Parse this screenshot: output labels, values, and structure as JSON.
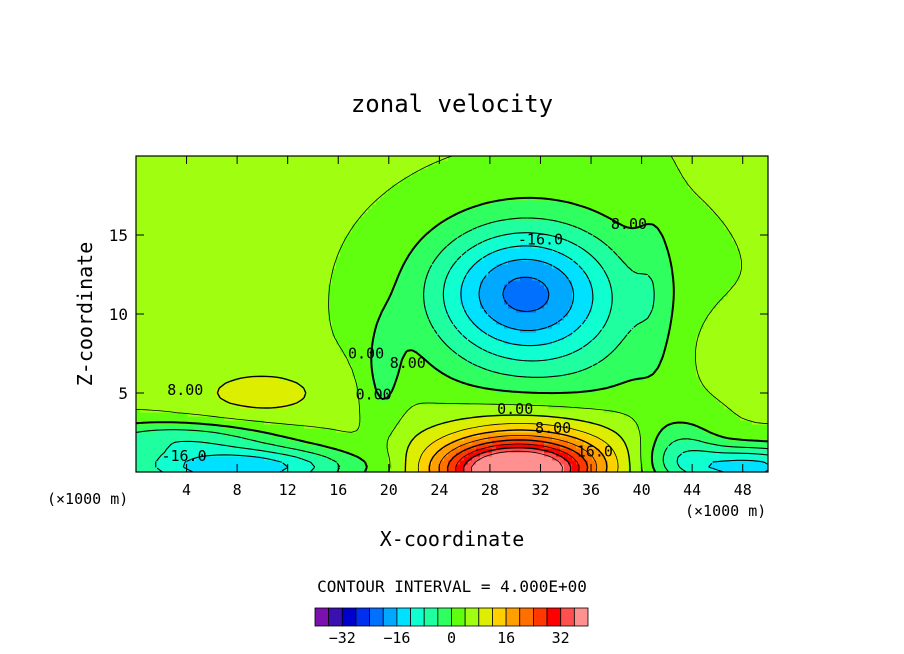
{
  "chart_data": {
    "type": "contour",
    "title": "zonal velocity",
    "xlabel": "X-coordinate",
    "ylabel": "Z-coordinate",
    "x_unit_left": "(×1000 m)",
    "x_unit_right": "(×1000 m)",
    "xlim": [
      0,
      50
    ],
    "ylim": [
      0,
      20
    ],
    "x_ticks": [
      4,
      8,
      12,
      16,
      20,
      24,
      28,
      32,
      36,
      40,
      44,
      48
    ],
    "y_ticks": [
      5,
      10,
      15
    ],
    "contour_interval_label": "CONTOUR INTERVAL = 4.000E+00",
    "colorbar": {
      "levels": [
        -40,
        -36,
        -32,
        -28,
        -24,
        -20,
        -16,
        -12,
        -8,
        -4,
        0,
        4,
        8,
        12,
        16,
        20,
        24,
        28,
        32,
        36,
        40
      ],
      "tick_values": [
        -32,
        -16,
        0,
        16,
        32
      ],
      "tick_labels": [
        "-32",
        "-16",
        "0",
        "16",
        "32"
      ],
      "colors": [
        "#7a10b0",
        "#3a10b0",
        "#0000cc",
        "#0030ee",
        "#0070ff",
        "#00a8ff",
        "#00e0ff",
        "#10ffd0",
        "#20ffa0",
        "#30ff60",
        "#60ff10",
        "#a0ff10",
        "#ddee00",
        "#ffd000",
        "#ffa000",
        "#ff7000",
        "#ff3800",
        "#ff0000",
        "#ff5050",
        "#ff9090"
      ]
    },
    "contour_labels": [
      {
        "text": "8.00",
        "x": 3.9,
        "y": 5.2
      },
      {
        "text": "-16.0",
        "x": 3.8,
        "y": 1.0
      },
      {
        "text": "0.00",
        "x": 18.2,
        "y": 7.5
      },
      {
        "text": "0.00",
        "x": 18.8,
        "y": 4.9
      },
      {
        "text": "8.00",
        "x": 21.5,
        "y": 6.9
      },
      {
        "text": "0.00",
        "x": 30.0,
        "y": 4.0
      },
      {
        "text": "8.00",
        "x": 33.0,
        "y": 2.8
      },
      {
        "text": "16.0",
        "x": 36.3,
        "y": 1.3
      },
      {
        "text": "-16.0",
        "x": 32.0,
        "y": 14.7
      },
      {
        "text": "8.00",
        "x": 39.0,
        "y": 15.7
      }
    ]
  }
}
